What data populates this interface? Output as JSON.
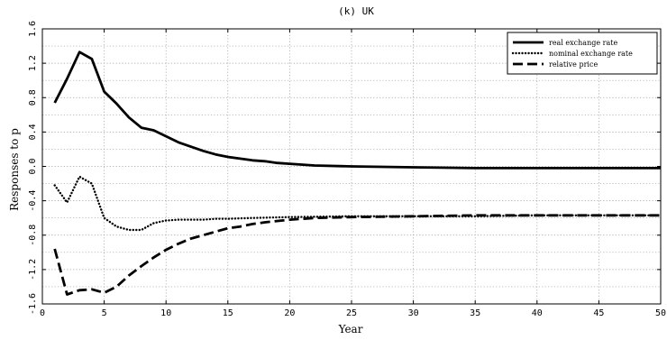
{
  "chart_data": {
    "type": "line",
    "title": "(k) UK",
    "xlabel": "Year",
    "ylabel": "Responses to p",
    "xlim": [
      0,
      50
    ],
    "ylim": [
      -1.6,
      1.6
    ],
    "xticks": [
      0,
      5,
      10,
      15,
      20,
      25,
      30,
      35,
      40,
      45,
      50
    ],
    "xtick_labels": [
      "0",
      "5",
      "10",
      "15",
      "20",
      "25",
      "30",
      "35",
      "40",
      "45",
      "50"
    ],
    "yticks": [
      -1.6,
      -1.2,
      -0.8,
      -0.4,
      0.0,
      0.4,
      0.8,
      1.2,
      1.6
    ],
    "ytick_labels": [
      "-1.6",
      "-1.2",
      "-0.8",
      "-0.4",
      "0.0",
      "0.4",
      "0.8",
      "1.2",
      "1.6"
    ],
    "grid": true,
    "legend_position": "top-right",
    "series": [
      {
        "name": "real exchange rate",
        "style": "solid",
        "color": "#000000",
        "x": [
          1,
          2,
          3,
          4,
          5,
          6,
          7,
          8,
          9,
          10,
          11,
          12,
          13,
          14,
          15,
          16,
          17,
          18,
          19,
          20,
          22,
          25,
          30,
          35,
          40,
          45,
          50
        ],
        "y": [
          0.74,
          1.02,
          1.33,
          1.25,
          0.87,
          0.73,
          0.57,
          0.45,
          0.42,
          0.35,
          0.28,
          0.23,
          0.18,
          0.14,
          0.11,
          0.09,
          0.07,
          0.06,
          0.04,
          0.03,
          0.01,
          0.0,
          -0.01,
          -0.02,
          -0.02,
          -0.02,
          -0.02
        ]
      },
      {
        "name": "nominal exchange rate",
        "style": "dotted",
        "color": "#000000",
        "x": [
          1,
          2,
          3,
          4,
          5,
          6,
          7,
          8,
          9,
          10,
          11,
          12,
          13,
          14,
          15,
          17,
          20,
          25,
          30,
          35,
          40,
          45,
          50
        ],
        "y": [
          -0.22,
          -0.42,
          -0.12,
          -0.2,
          -0.6,
          -0.7,
          -0.74,
          -0.74,
          -0.66,
          -0.63,
          -0.62,
          -0.62,
          -0.62,
          -0.61,
          -0.61,
          -0.6,
          -0.59,
          -0.58,
          -0.58,
          -0.58,
          -0.57,
          -0.57,
          -0.57
        ]
      },
      {
        "name": "relative price",
        "style": "dashed",
        "color": "#000000",
        "x": [
          1,
          2,
          3,
          4,
          5,
          6,
          7,
          8,
          9,
          10,
          11,
          12,
          13,
          14,
          15,
          16,
          17,
          18,
          20,
          22,
          25,
          30,
          35,
          40,
          45,
          50
        ],
        "y": [
          -0.96,
          -1.49,
          -1.44,
          -1.43,
          -1.47,
          -1.4,
          -1.27,
          -1.16,
          -1.06,
          -0.97,
          -0.9,
          -0.84,
          -0.8,
          -0.76,
          -0.72,
          -0.7,
          -0.67,
          -0.65,
          -0.62,
          -0.6,
          -0.59,
          -0.58,
          -0.57,
          -0.57,
          -0.57,
          -0.57
        ]
      }
    ]
  }
}
